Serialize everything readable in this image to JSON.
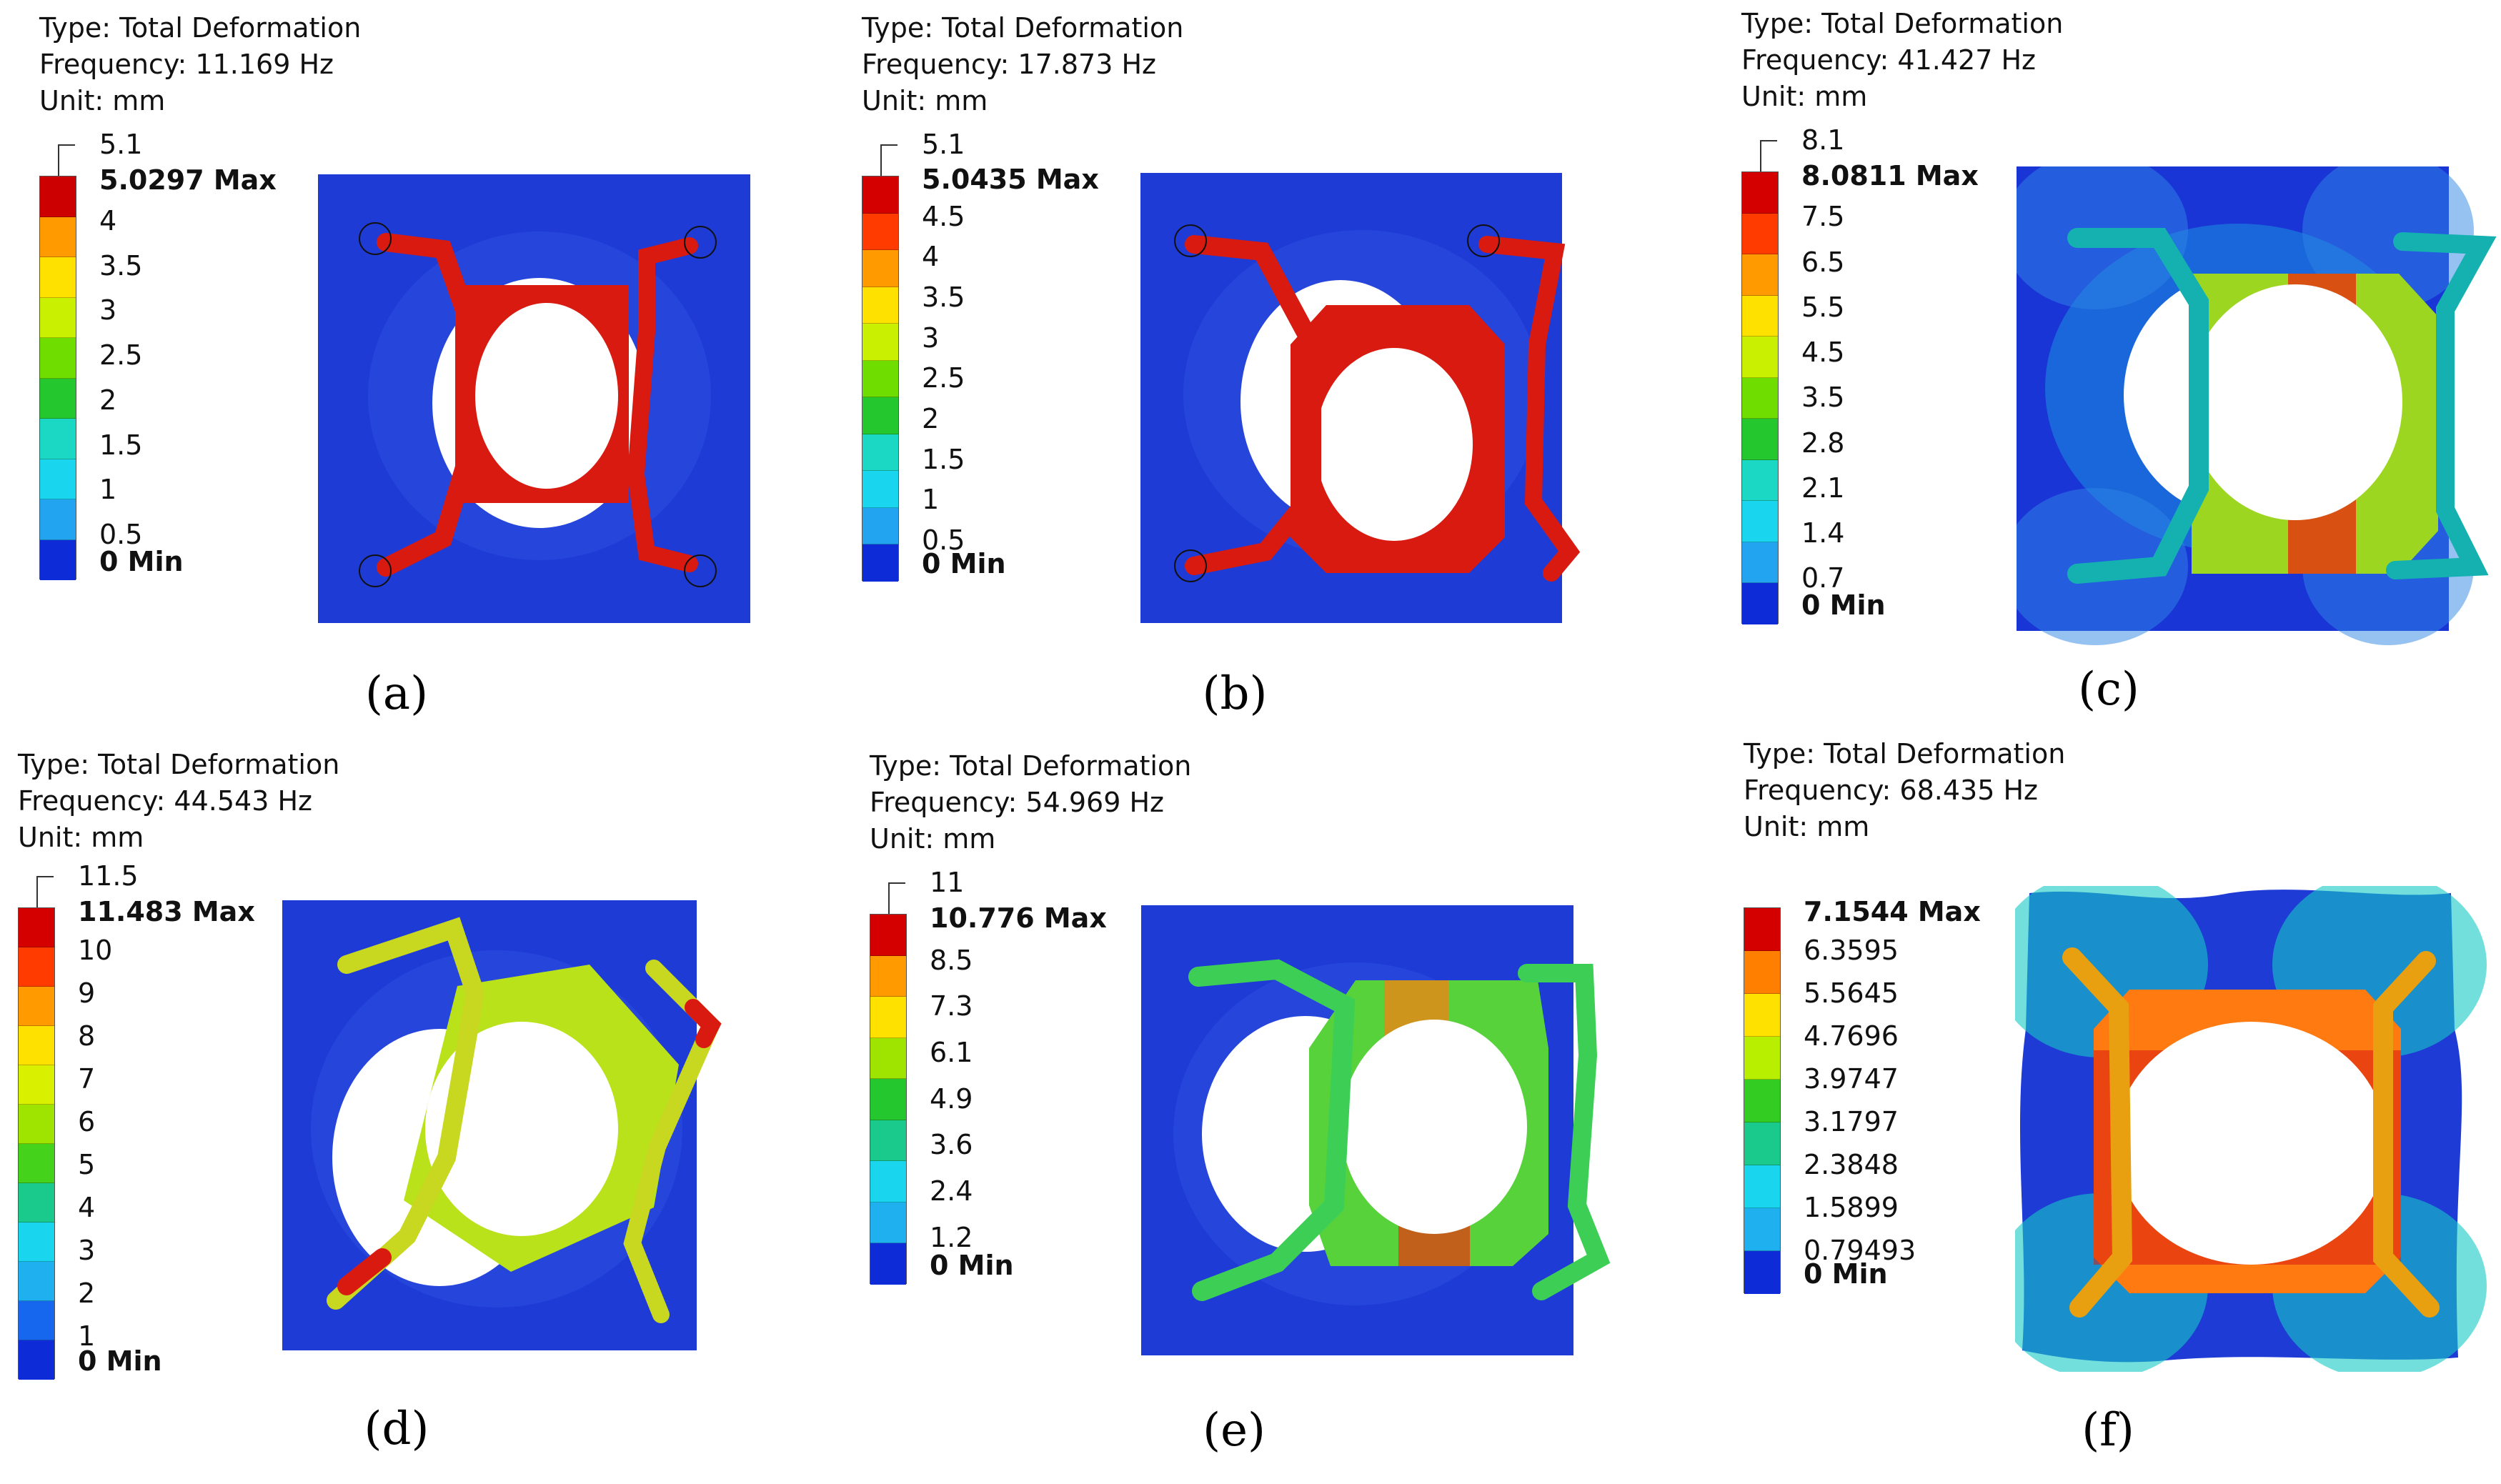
{
  "colors": {
    "plate": "#1f3bd6",
    "plate_dark": "#0c26b8",
    "bar_palette": [
      "#c80000",
      "#ff2a00",
      "#ff8a00",
      "#ffd500",
      "#d9f000",
      "#8fe600",
      "#2fd52f",
      "#16c98a",
      "#12d5d5",
      "#18a8f0",
      "#1666ee",
      "#0a1fd9"
    ]
  },
  "panels": [
    {
      "id": "a",
      "caption": "(a)",
      "type": "Type: Total Deformation",
      "frequency": "Frequency: 11.169 Hz",
      "unit": "Unit: mm",
      "scale_top": "5.1",
      "labels": [
        "5.0297 Max",
        "4",
        "3.5",
        "3",
        "2.5",
        "2",
        "1.5",
        "1",
        "0.5",
        "0 Min"
      ],
      "bar_colors": [
        "#cc0000",
        "#ff9a00",
        "#ffe100",
        "#c8f000",
        "#6fdd00",
        "#24c82e",
        "#1ad8c4",
        "#19d5ee",
        "#22a4f0",
        "#0e2bd8"
      ]
    },
    {
      "id": "b",
      "caption": "(b)",
      "type": "Type: Total Deformation",
      "frequency": "Frequency: 17.873 Hz",
      "unit": "Unit: mm",
      "scale_top": "5.1",
      "labels": [
        "5.0435 Max",
        "4.5",
        "4",
        "3.5",
        "3",
        "2.5",
        "2",
        "1.5",
        "1",
        "0.5",
        "0 Min"
      ],
      "bar_colors": [
        "#d40000",
        "#ff3b00",
        "#ff9a00",
        "#ffe100",
        "#c8f000",
        "#6fdd00",
        "#24c82e",
        "#1ad8c4",
        "#19d5ee",
        "#22a4f0",
        "#0e2bd8"
      ]
    },
    {
      "id": "c",
      "caption": "(c)",
      "type": "Type: Total Deformation",
      "frequency": "Frequency: 41.427 Hz",
      "unit": "Unit: mm",
      "scale_top": "8.1",
      "labels": [
        "8.0811 Max",
        "7.5",
        "6.5",
        "5.5",
        "4.5",
        "3.5",
        "2.8",
        "2.1",
        "1.4",
        "0.7",
        "0 Min"
      ],
      "bar_colors": [
        "#d40000",
        "#ff3b00",
        "#ff9a00",
        "#ffe100",
        "#c8f000",
        "#6fdd00",
        "#24c82e",
        "#1ad8c4",
        "#19d5ee",
        "#22a4f0",
        "#0e2bd8"
      ]
    },
    {
      "id": "d",
      "caption": "(d)",
      "type": "Type: Total Deformation",
      "frequency": "Frequency: 44.543 Hz",
      "unit": "Unit: mm",
      "scale_top": "11.5",
      "labels": [
        "11.483 Max",
        "10",
        "9",
        "8",
        "7",
        "6",
        "5",
        "4",
        "3",
        "2",
        "1",
        "0 Min"
      ],
      "bar_colors": [
        "#d40000",
        "#ff3b00",
        "#ff9a00",
        "#ffe100",
        "#d9f000",
        "#9fe400",
        "#44d21a",
        "#1ac98c",
        "#19d5ee",
        "#1fb0f0",
        "#1666ee",
        "#0e2bd8"
      ]
    },
    {
      "id": "e",
      "caption": "(e)",
      "type": "Type: Total Deformation",
      "frequency": "Frequency: 54.969 Hz",
      "unit": "Unit: mm",
      "scale_top": "11",
      "labels": [
        "10.776 Max",
        "8.5",
        "7.3",
        "6.1",
        "4.9",
        "3.6",
        "2.4",
        "1.2",
        "0 Min"
      ],
      "bar_colors": [
        "#d40000",
        "#ff9a00",
        "#ffe100",
        "#9fe400",
        "#24c82e",
        "#1ac98c",
        "#19d5ee",
        "#1fb0f0",
        "#0e2bd8"
      ]
    },
    {
      "id": "f",
      "caption": "(f)",
      "type": "Type: Total Deformation",
      "frequency": "Frequency: 68.435 Hz",
      "unit": "Unit: mm",
      "scale_top": "",
      "labels": [
        "7.1544 Max",
        "6.3595",
        "5.5645",
        "4.7696",
        "3.9747",
        "3.1797",
        "2.3848",
        "1.5899",
        "0.79493",
        "0 Min"
      ],
      "bar_colors": [
        "#d40000",
        "#ff8000",
        "#ffe100",
        "#b8ee00",
        "#33cc22",
        "#1ac98c",
        "#19d5ee",
        "#1fb0f0",
        "#0e2bd8"
      ]
    }
  ]
}
